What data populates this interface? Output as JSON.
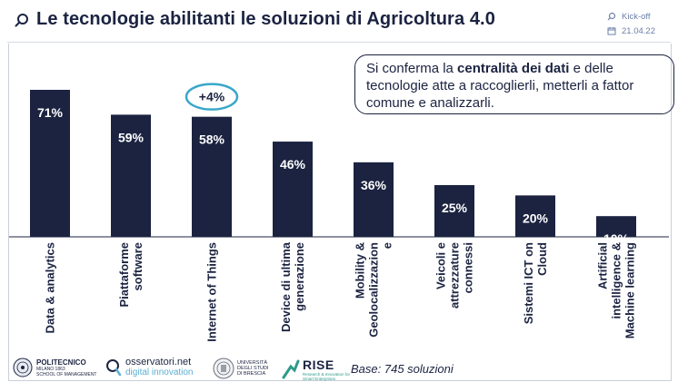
{
  "header": {
    "title": "Le tecnologie abilitanti le soluzioni di Agricoltura 4.0",
    "event_label": "Kick-off",
    "date": "21.04.22"
  },
  "callout": {
    "part1": "Si conferma la ",
    "bold": "centralità dei dati",
    "part2": " e delle tecnologie atte a raccoglierli, metterli a fattor comune e analizzarli."
  },
  "chart_data": {
    "type": "bar",
    "categories": [
      [
        "Data & analytics"
      ],
      [
        "Piattaforme",
        "software"
      ],
      [
        "Internet of Things"
      ],
      [
        "Device di ultima",
        "generazione"
      ],
      [
        "Mobility &",
        "Geolocalizzazion",
        "e"
      ],
      [
        "Veicoli e",
        "attrezzature",
        "connessi"
      ],
      [
        "Sistemi ICT on",
        "Cloud"
      ],
      [
        "Artificial",
        "intelligence &",
        "Machine learning"
      ]
    ],
    "values": [
      71,
      59,
      58,
      46,
      36,
      25,
      20,
      10
    ],
    "value_labels": [
      "71%",
      "59%",
      "58%",
      "46%",
      "36%",
      "25%",
      "20%",
      "10%"
    ],
    "annotation": {
      "category_index": 2,
      "text": "+4%"
    },
    "ylim": [
      0,
      80
    ],
    "bar_color": "#1b2341",
    "annotation_color": "#3aa7c9"
  },
  "footer": {
    "polimi_name": "POLITECNICO",
    "polimi_sub": "MILANO 1863",
    "polimi_school": "SCHOOL OF MANAGEMENT",
    "osservatori_name": "osservatori.net",
    "osservatori_sub": "digital innovation",
    "unibs_line1": "UNIVERSITÀ",
    "unibs_line2": "DEGLI STUDI",
    "unibs_line3": "DI BRESCIA",
    "rise_name": "RISE",
    "rise_sub": "Research & Innovation for Smart Enterprises",
    "base_note": "Base: 745 soluzioni"
  }
}
